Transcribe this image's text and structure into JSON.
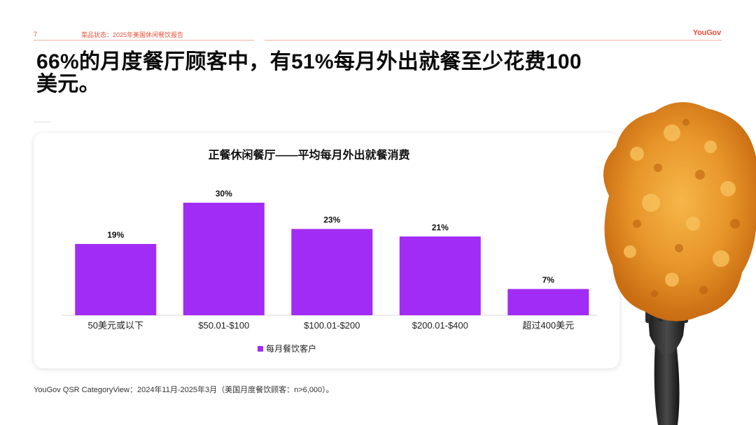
{
  "header": {
    "page_number": "7",
    "report_name": "菜品状态：2025年美国休闲餐饮报告",
    "brand": "YouGov"
  },
  "page_title": "66%的月度餐厅顾客中，有51%每月外出就餐至少花费100美元。",
  "chart_data": {
    "type": "bar",
    "title": "正餐休闲餐厅——平均每月外出就餐消费",
    "categories": [
      "50美元或以下",
      "$50.01-$100",
      "$100.01-$200",
      "$200.01-$400",
      "超过400美元"
    ],
    "series": [
      {
        "name": "每月餐饮客户",
        "values": [
          19,
          30,
          23,
          21,
          7
        ],
        "color": "#a12cf5"
      }
    ],
    "data_labels": [
      "19%",
      "30%",
      "23%",
      "21%",
      "7%"
    ],
    "xlabel": "",
    "ylabel": "",
    "ylim": [
      0,
      30
    ],
    "grid": false,
    "legend_position": "bottom"
  },
  "source": "YouGov QSR CategoryView：2024年11月-2025年3月（美国月度餐饮顾客：n>6,000）。",
  "colors": {
    "accent": "#e8503a",
    "bar": "#a12cf5"
  },
  "image": {
    "icon": "fried-chicken-on-fork-photo"
  }
}
